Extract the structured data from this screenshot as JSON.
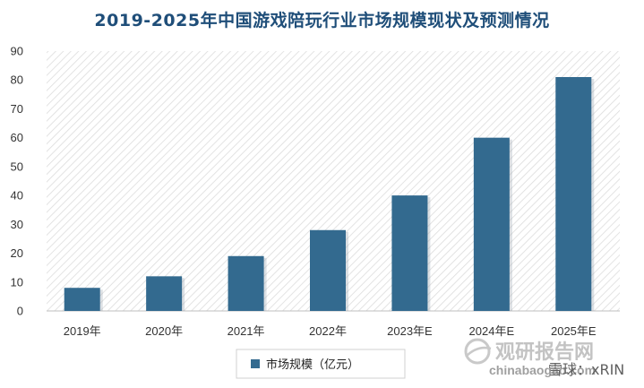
{
  "page_title": "2019-2025年中国游戏陪玩行业市场规模现状及预测情况",
  "chart_data": {
    "type": "bar",
    "title": "2019-2025年中国游戏陪玩行业市场规模现状及预测情况",
    "categories": [
      "2019年",
      "2020年",
      "2021年",
      "2022年",
      "2023年E",
      "2024年E",
      "2025年E"
    ],
    "series": [
      {
        "name": "市场规模（亿元）",
        "values": [
          8,
          12,
          19,
          28,
          40,
          60,
          81
        ]
      }
    ],
    "yticks": [
      0,
      10,
      20,
      30,
      40,
      50,
      60,
      70,
      80,
      90
    ],
    "ylim": [
      0,
      90
    ],
    "xlabel": "",
    "ylabel": "",
    "legend_position": "bottom",
    "grid": false,
    "bar_color": "#336a8f"
  },
  "watermark": {
    "chinese": "观研报告网",
    "english": "chinabaogao.com",
    "overlay": "雪球：xRIN"
  }
}
